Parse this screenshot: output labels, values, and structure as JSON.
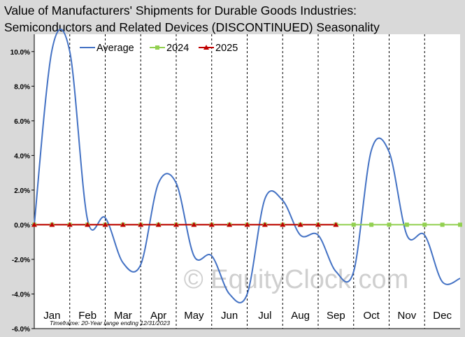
{
  "chart_data": {
    "type": "line",
    "title_lines": [
      "Value of Manufacturers'  Shipments  for Durable Goods Industries:",
      "Semiconductors and Related Devices (DISCONTINUED) Seasonality"
    ],
    "xlabel": "",
    "ylabel": "",
    "categories": [
      "Jan",
      "Feb",
      "Mar",
      "Apr",
      "May",
      "Jun",
      "Jul",
      "Aug",
      "Sep",
      "Oct",
      "Nov",
      "Dec"
    ],
    "ylim": [
      -6,
      11
    ],
    "yticks": [
      -6,
      -4,
      -2,
      0,
      2,
      4,
      6,
      8,
      10
    ],
    "ytick_labels": [
      "-6.0%",
      "-4.0%",
      "-2.0%",
      "0.0%",
      "2.0%",
      "4.0%",
      "6.0%",
      "8.0%",
      "10.0%"
    ],
    "grid": "vertical dashed month separators",
    "legend_position": "top-left",
    "series": [
      {
        "name": "Average",
        "color": "#4472c4",
        "x": [
          0.0,
          0.5,
          1.0,
          1.5,
          2.0,
          2.5,
          3.0,
          3.5,
          4.0,
          4.5,
          5.0,
          5.5,
          6.0,
          6.5,
          7.0,
          7.5,
          8.0,
          8.5,
          9.0,
          9.5,
          10.0,
          10.5,
          11.0,
          11.5,
          12.0
        ],
        "values": [
          0.0,
          10.1,
          10.0,
          0.3,
          0.4,
          -2.2,
          -2.3,
          2.4,
          2.4,
          -1.8,
          -1.8,
          -4.0,
          -4.0,
          1.5,
          1.4,
          -0.6,
          -0.6,
          -2.7,
          -2.7,
          4.3,
          4.2,
          -0.6,
          -0.6,
          -3.3,
          -3.1
        ]
      },
      {
        "name": "2024",
        "color": "#92d050",
        "x": [
          0.0,
          0.5,
          1.0,
          1.5,
          2.0,
          2.5,
          3.0,
          3.5,
          4.0,
          4.5,
          5.0,
          5.5,
          6.0,
          6.5,
          7.0,
          7.5,
          8.0,
          8.5,
          9.0,
          9.5,
          10.0,
          10.5,
          11.0,
          11.5,
          12.0
        ],
        "values": [
          0,
          0,
          0,
          0,
          0,
          0,
          0,
          0,
          0,
          0,
          0,
          0,
          0,
          0,
          0,
          0,
          0,
          0,
          0,
          0,
          0,
          0,
          0,
          0,
          0
        ]
      },
      {
        "name": "2025",
        "color": "#c00000",
        "x": [
          0.0,
          0.5,
          1.0,
          1.5,
          2.0,
          2.5,
          3.0,
          3.5,
          4.0,
          4.5,
          5.0,
          5.5,
          6.0,
          6.5,
          7.0,
          7.5,
          8.0,
          8.5
        ],
        "values": [
          0,
          0,
          0,
          0,
          0,
          0,
          0,
          0,
          0,
          0,
          0,
          0,
          0,
          0,
          0,
          0,
          0,
          0
        ]
      }
    ],
    "footnote": "Timeframe: 20-Year range ending 12/31/2023",
    "watermark": "© EquityClock.com"
  }
}
